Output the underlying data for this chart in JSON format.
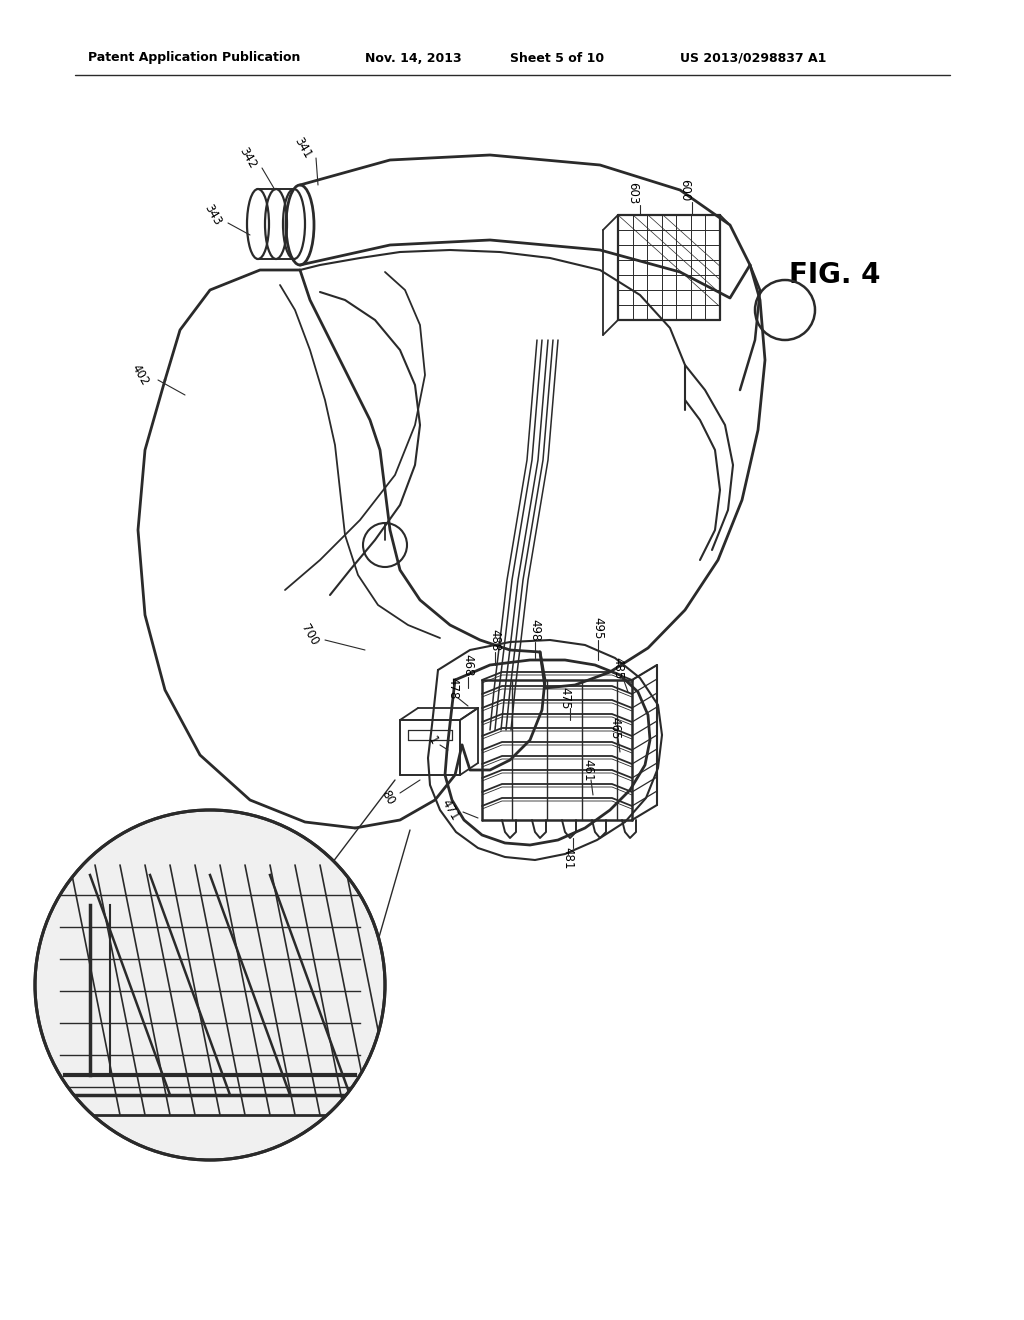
{
  "background_color": "#ffffff",
  "header_text": "Patent Application Publication",
  "header_date": "Nov. 14, 2013",
  "header_sheet": "Sheet 5 of 10",
  "header_patent": "US 2013/0298837 A1",
  "fig_label": "FIG. 4",
  "line_color": "#2a2a2a",
  "text_color": "#000000"
}
